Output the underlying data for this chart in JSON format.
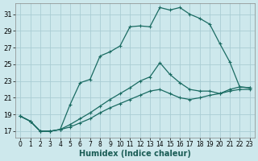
{
  "xlabel": "Humidex (Indice chaleur)",
  "background_color": "#cde8ec",
  "grid_color": "#aacdd4",
  "line_color": "#1a6b62",
  "xlim": [
    -0.5,
    23.5
  ],
  "ylim": [
    16.2,
    32.3
  ],
  "yticks": [
    17,
    19,
    21,
    23,
    25,
    27,
    29,
    31
  ],
  "xticks": [
    0,
    1,
    2,
    3,
    4,
    5,
    6,
    7,
    8,
    9,
    10,
    11,
    12,
    13,
    14,
    15,
    16,
    17,
    18,
    19,
    20,
    21,
    22,
    23
  ],
  "curve1_x": [
    0,
    1,
    2,
    3,
    4,
    5,
    6,
    7,
    8,
    9,
    10,
    11,
    12,
    13,
    14,
    15,
    16,
    17,
    18,
    19,
    20,
    21,
    22,
    23
  ],
  "curve1_y": [
    18.8,
    18.2,
    17.0,
    17.0,
    17.2,
    20.2,
    22.8,
    23.2,
    26.0,
    26.5,
    27.2,
    29.5,
    29.6,
    29.5,
    31.8,
    31.5,
    31.8,
    31.0,
    30.5,
    29.8,
    27.5,
    25.3,
    22.3,
    22.2
  ],
  "curve2_x": [
    0,
    1,
    2,
    3,
    4,
    5,
    6,
    7,
    8,
    9,
    10,
    11,
    12,
    13,
    14,
    15,
    16,
    17,
    18,
    19,
    20,
    21,
    22,
    23
  ],
  "curve2_y": [
    18.8,
    18.2,
    17.0,
    17.0,
    17.2,
    17.8,
    18.5,
    19.2,
    20.0,
    20.8,
    21.5,
    22.2,
    23.0,
    23.5,
    25.2,
    23.8,
    22.8,
    22.0,
    21.8,
    21.8,
    21.5,
    22.0,
    22.3,
    22.2
  ],
  "curve3_x": [
    0,
    1,
    2,
    3,
    4,
    5,
    6,
    7,
    8,
    9,
    10,
    11,
    12,
    13,
    14,
    15,
    16,
    17,
    18,
    19,
    20,
    21,
    22,
    23
  ],
  "curve3_y": [
    18.8,
    18.2,
    17.0,
    17.0,
    17.2,
    17.5,
    18.0,
    18.5,
    19.2,
    19.8,
    20.3,
    20.8,
    21.3,
    21.8,
    22.0,
    21.5,
    21.0,
    20.8,
    21.0,
    21.3,
    21.5,
    21.8,
    22.0,
    22.0
  ]
}
